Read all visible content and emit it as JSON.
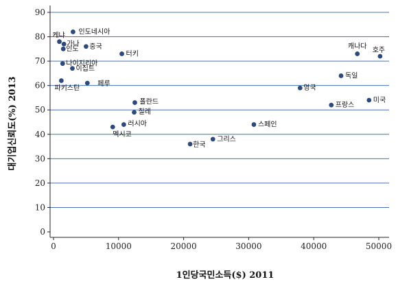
{
  "chart_data": {
    "type": "scatter",
    "title": "",
    "xlabel": "1인당국민소득($) 2011",
    "ylabel": "대기업신뢰도(%) 2013",
    "xlim": [
      0,
      50000
    ],
    "ylim": [
      0,
      90
    ],
    "xticks": [
      0,
      10000,
      20000,
      30000,
      40000,
      50000
    ],
    "yticks": [
      0,
      10,
      20,
      30,
      40,
      50,
      60,
      70,
      80,
      90
    ],
    "grid": "horizontal",
    "colors": {
      "point": "#2e4a7a",
      "gridline": "#4a6fb0",
      "axis": "#222222"
    },
    "points": [
      {
        "label": "인도네시아",
        "x": 3000,
        "y": 82
      },
      {
        "label": "케냐",
        "x": 900,
        "y": 78
      },
      {
        "label": "가나",
        "x": 1600,
        "y": 77
      },
      {
        "label": "인도",
        "x": 1500,
        "y": 75
      },
      {
        "label": "중국",
        "x": 5000,
        "y": 76
      },
      {
        "label": "터키",
        "x": 10500,
        "y": 73
      },
      {
        "label": "나이지리아",
        "x": 1400,
        "y": 69
      },
      {
        "label": "이집트",
        "x": 2900,
        "y": 67
      },
      {
        "label": "파키스탄",
        "x": 1200,
        "y": 62
      },
      {
        "label": "페루",
        "x": 5200,
        "y": 61
      },
      {
        "label": "폴란드",
        "x": 12500,
        "y": 53
      },
      {
        "label": "칠레",
        "x": 12400,
        "y": 49
      },
      {
        "label": "러시아",
        "x": 10800,
        "y": 44
      },
      {
        "label": "멕시코",
        "x": 9100,
        "y": 43
      },
      {
        "label": "한국",
        "x": 21000,
        "y": 36
      },
      {
        "label": "그리스",
        "x": 24500,
        "y": 38
      },
      {
        "label": "스페인",
        "x": 30800,
        "y": 44
      },
      {
        "label": "영국",
        "x": 37900,
        "y": 59
      },
      {
        "label": "프랑스",
        "x": 42700,
        "y": 52
      },
      {
        "label": "독일",
        "x": 44200,
        "y": 64
      },
      {
        "label": "미국",
        "x": 48500,
        "y": 54
      },
      {
        "label": "캐나다",
        "x": 46700,
        "y": 73
      },
      {
        "label": "호주",
        "x": 50200,
        "y": 72
      }
    ]
  }
}
